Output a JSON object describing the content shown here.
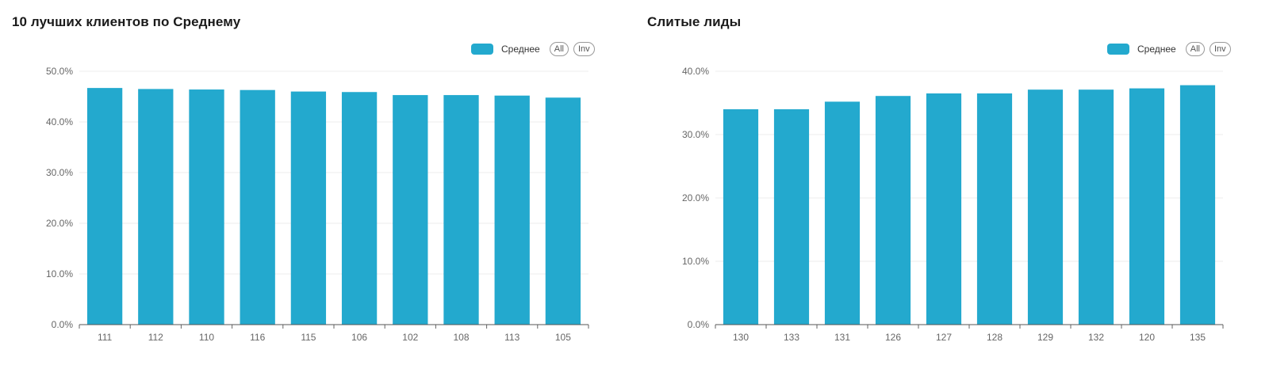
{
  "charts": [
    {
      "title": "10 лучших клиентов по Среднему",
      "legend": {
        "series_label": "Среднее",
        "all_label": "All",
        "inv_label": "Inv"
      }
    },
    {
      "title": "Слитые лиды",
      "legend": {
        "series_label": "Среднее",
        "all_label": "All",
        "inv_label": "Inv"
      }
    }
  ],
  "chart_data": [
    {
      "type": "bar",
      "title": "10 лучших клиентов по Среднему",
      "categories": [
        "111",
        "112",
        "110",
        "116",
        "115",
        "106",
        "102",
        "108",
        "113",
        "105"
      ],
      "series": [
        {
          "name": "Среднее",
          "values": [
            46.7,
            46.5,
            46.4,
            46.3,
            46.0,
            45.9,
            45.3,
            45.3,
            45.2,
            44.8
          ]
        }
      ],
      "yticks": [
        "0.0%",
        "10.0%",
        "20.0%",
        "30.0%",
        "40.0%",
        "50.0%"
      ],
      "ylim": [
        0,
        50
      ],
      "y_format": "percent",
      "grid": true,
      "legend_position": "top-right",
      "color": "#23a9ce"
    },
    {
      "type": "bar",
      "title": "Слитые лиды",
      "categories": [
        "130",
        "133",
        "131",
        "126",
        "127",
        "128",
        "129",
        "132",
        "120",
        "135"
      ],
      "series": [
        {
          "name": "Среднее",
          "values": [
            34.0,
            34.0,
            35.2,
            36.1,
            36.5,
            36.5,
            37.1,
            37.1,
            37.3,
            37.8
          ]
        }
      ],
      "yticks": [
        "0.0%",
        "10.0%",
        "20.0%",
        "30.0%",
        "40.0%"
      ],
      "ylim": [
        0,
        40
      ],
      "y_format": "percent",
      "grid": true,
      "legend_position": "top-right",
      "color": "#23a9ce"
    }
  ]
}
